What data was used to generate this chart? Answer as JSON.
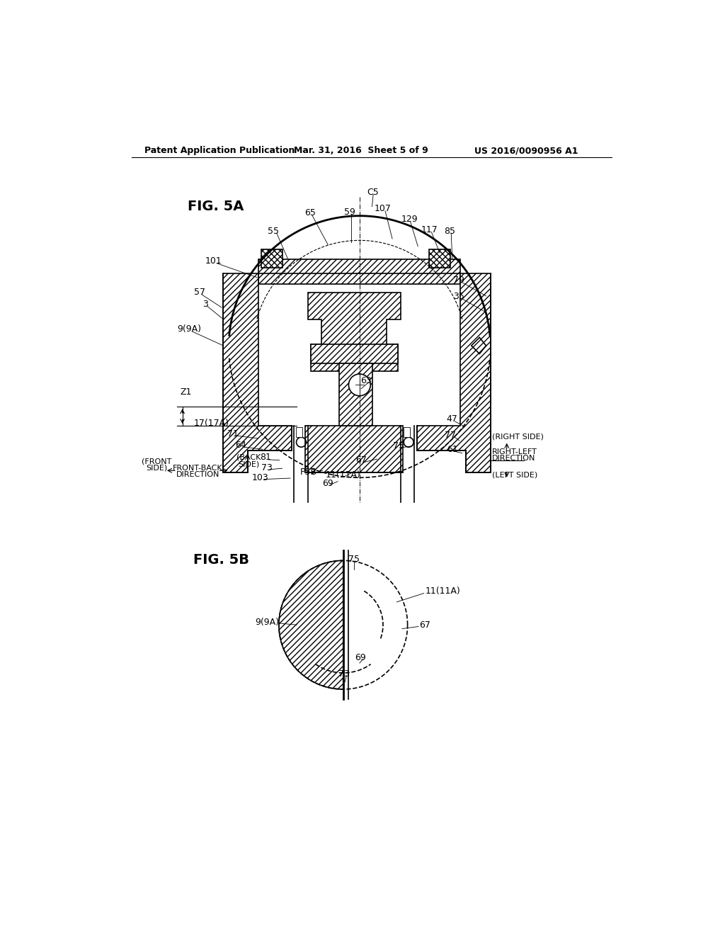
{
  "header_left": "Patent Application Publication",
  "header_mid": "Mar. 31, 2016  Sheet 5 of 9",
  "header_right": "US 2016/0090956 A1",
  "fig5a_label": "FIG. 5A",
  "fig5b_label": "FIG. 5B",
  "bg_color": "#ffffff"
}
